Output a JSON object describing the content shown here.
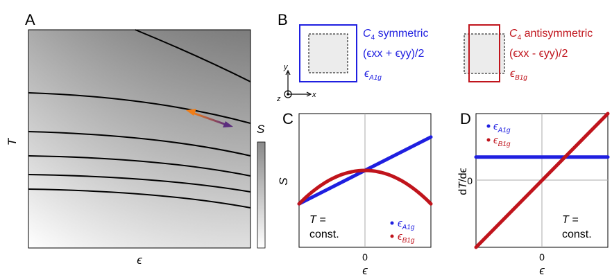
{
  "panel_labels": {
    "a": "A",
    "b": "B",
    "c": "C",
    "d": "D"
  },
  "panel_a": {
    "ylabel": "T",
    "xlabel": "ϵ",
    "colorbar_label": "S"
  },
  "panel_b": {
    "sym_title_C": "C",
    "sym_title_sub": "4",
    "sym_title_rest": " symmetric",
    "sym_expr": "(ϵxx + ϵyy)/2",
    "sym_eps": "ϵ",
    "sym_eps_sub": "A1g",
    "anti_title_C": "C",
    "anti_title_sub": "4",
    "anti_title_rest": " antisymmetric",
    "anti_expr": "(ϵxx - ϵyy)/2",
    "anti_eps": "ϵ",
    "anti_eps_sub": "B1g",
    "axis_y": "y",
    "axis_x": "x",
    "axis_z": "z",
    "colors": {
      "a1g": "#1f1fe0",
      "b1g": "#c0141c"
    }
  },
  "panel_c": {
    "ylabel": "S",
    "xlabel": "ϵ",
    "xtick": "0",
    "note_line1": "T =",
    "note_line2": "const.",
    "legend": [
      {
        "eps": "ϵ",
        "sub": "A1g",
        "color": "#1f1fe0"
      },
      {
        "eps": "ϵ",
        "sub": "B1g",
        "color": "#c0141c"
      }
    ]
  },
  "panel_d": {
    "ylabel": "dT/dϵ",
    "xlabel": "ϵ",
    "xtick": "0",
    "ytick": "0",
    "note_line1": "T =",
    "note_line2": "const.",
    "legend": [
      {
        "eps": "ϵ",
        "sub": "A1g",
        "color": "#1f1fe0"
      },
      {
        "eps": "ϵ",
        "sub": "B1g",
        "color": "#c0141c"
      }
    ]
  },
  "chart_data": [
    {
      "type": "line",
      "xlabel": "ϵ",
      "ylabel": "S",
      "series": [
        {
          "name": "ϵA1g",
          "color": "#1f1fe0",
          "x": [
            -1,
            0,
            1
          ],
          "y": [
            -0.35,
            0.15,
            0.65
          ]
        },
        {
          "name": "ϵB1g",
          "color": "#c0141c",
          "x": [
            -1,
            -0.5,
            0,
            0.5,
            1
          ],
          "y": [
            -0.35,
            0.0875,
            0.15,
            0.0875,
            -0.35
          ]
        }
      ]
    },
    {
      "type": "line",
      "xlabel": "ϵ",
      "ylabel": "dT/dϵ",
      "series": [
        {
          "name": "ϵA1g",
          "color": "#1f1fe0",
          "x": [
            -1,
            1
          ],
          "y": [
            0.35,
            0.35
          ]
        },
        {
          "name": "ϵB1g",
          "color": "#c0141c",
          "x": [
            -1,
            1
          ],
          "y": [
            -1,
            1
          ]
        }
      ]
    }
  ]
}
